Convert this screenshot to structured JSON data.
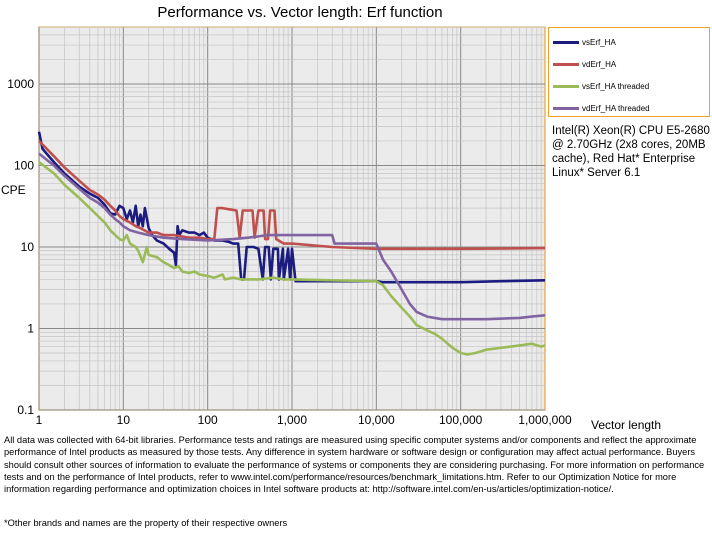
{
  "chart_data": {
    "type": "line",
    "title": "Performance vs. Vector length: Erf function",
    "xlabel": "Vector length",
    "ylabel": "CPE",
    "xscale": "log",
    "yscale": "log",
    "xlim": [
      1,
      1000000
    ],
    "ylim": [
      0.1,
      5000
    ],
    "x_ticks": [
      1,
      10,
      100,
      1000,
      10000,
      100000,
      1000000
    ],
    "x_tick_labels": [
      "1",
      "10",
      "100",
      "1,000",
      "10,000",
      "100,000",
      "1,000,000"
    ],
    "y_ticks": [
      0.1,
      1,
      10,
      100,
      1000
    ],
    "y_tick_labels": [
      "0.1",
      "1",
      "10",
      "100",
      "1000"
    ],
    "grid": true,
    "legend_position": "top-right",
    "series": [
      {
        "name": "vsErf_HA",
        "color": "#1c1c80",
        "points": [
          [
            1,
            260
          ],
          [
            1.1,
            160
          ],
          [
            1.5,
            110
          ],
          [
            2,
            80
          ],
          [
            3,
            55
          ],
          [
            4,
            45
          ],
          [
            5,
            40
          ],
          [
            6,
            33
          ],
          [
            7,
            26
          ],
          [
            8,
            25
          ],
          [
            9,
            32
          ],
          [
            10,
            30
          ],
          [
            11,
            22
          ],
          [
            12,
            28
          ],
          [
            13,
            20
          ],
          [
            14,
            32
          ],
          [
            15,
            18
          ],
          [
            16,
            25
          ],
          [
            17,
            18
          ],
          [
            18,
            30
          ],
          [
            20,
            17
          ],
          [
            22,
            14
          ],
          [
            25,
            12
          ],
          [
            30,
            11
          ],
          [
            35,
            9.5
          ],
          [
            40,
            8.5
          ],
          [
            42,
            6
          ],
          [
            44,
            18
          ],
          [
            46,
            14
          ],
          [
            50,
            16
          ],
          [
            60,
            15
          ],
          [
            70,
            15
          ],
          [
            80,
            14
          ],
          [
            90,
            15
          ],
          [
            100,
            13
          ],
          [
            120,
            12
          ],
          [
            150,
            12
          ],
          [
            180,
            11.5
          ],
          [
            200,
            11
          ],
          [
            230,
            11
          ],
          [
            250,
            4
          ],
          [
            270,
            4
          ],
          [
            290,
            10
          ],
          [
            320,
            10
          ],
          [
            350,
            10
          ],
          [
            400,
            9.5
          ],
          [
            450,
            4
          ],
          [
            480,
            10
          ],
          [
            530,
            10
          ],
          [
            560,
            4
          ],
          [
            600,
            9.5
          ],
          [
            680,
            9.5
          ],
          [
            700,
            4
          ],
          [
            780,
            9.5
          ],
          [
            800,
            4
          ],
          [
            900,
            9.5
          ],
          [
            950,
            4
          ],
          [
            1000,
            9.5
          ],
          [
            1100,
            3.8
          ],
          [
            2000,
            3.8
          ],
          [
            5000,
            3.8
          ],
          [
            10000,
            3.8
          ],
          [
            12000,
            3.7
          ],
          [
            30000,
            3.7
          ],
          [
            100000,
            3.7
          ],
          [
            300000,
            3.8
          ],
          [
            1000000,
            3.9
          ]
        ]
      },
      {
        "name": "vdErf_HA",
        "color": "#c0504d",
        "points": [
          [
            1,
            200
          ],
          [
            1.5,
            130
          ],
          [
            2,
            95
          ],
          [
            3,
            65
          ],
          [
            4,
            50
          ],
          [
            5,
            44
          ],
          [
            6,
            38
          ],
          [
            7,
            32
          ],
          [
            8,
            28
          ],
          [
            9,
            24
          ],
          [
            10,
            22
          ],
          [
            12,
            20
          ],
          [
            14,
            18
          ],
          [
            16,
            17
          ],
          [
            20,
            15
          ],
          [
            25,
            15
          ],
          [
            30,
            14
          ],
          [
            40,
            14
          ],
          [
            60,
            13
          ],
          [
            80,
            13
          ],
          [
            100,
            12.5
          ],
          [
            120,
            12.5
          ],
          [
            130,
            30
          ],
          [
            150,
            30
          ],
          [
            180,
            29
          ],
          [
            220,
            28
          ],
          [
            240,
            13
          ],
          [
            260,
            28
          ],
          [
            300,
            28
          ],
          [
            340,
            28
          ],
          [
            360,
            13
          ],
          [
            400,
            28
          ],
          [
            460,
            28
          ],
          [
            480,
            12.5
          ],
          [
            520,
            12.5
          ],
          [
            550,
            28
          ],
          [
            620,
            28
          ],
          [
            650,
            12.5
          ],
          [
            800,
            11
          ],
          [
            1000,
            11
          ],
          [
            3000,
            10
          ],
          [
            10000,
            9.5
          ],
          [
            100000,
            9.5
          ],
          [
            1000000,
            9.7
          ]
        ]
      },
      {
        "name": "vsErf_HA threaded",
        "color": "#9bbb59",
        "points": [
          [
            1,
            110
          ],
          [
            1.5,
            80
          ],
          [
            2,
            58
          ],
          [
            3,
            40
          ],
          [
            4,
            30
          ],
          [
            5,
            24
          ],
          [
            6,
            20
          ],
          [
            7,
            16
          ],
          [
            8,
            14
          ],
          [
            9,
            12.5
          ],
          [
            10,
            12
          ],
          [
            11,
            14
          ],
          [
            12,
            11
          ],
          [
            14,
            10
          ],
          [
            15,
            9
          ],
          [
            17,
            6.5
          ],
          [
            19,
            10
          ],
          [
            20,
            8
          ],
          [
            25,
            7.5
          ],
          [
            30,
            6.5
          ],
          [
            35,
            6
          ],
          [
            40,
            5.5
          ],
          [
            45,
            5.8
          ],
          [
            50,
            5
          ],
          [
            60,
            4.8
          ],
          [
            70,
            5
          ],
          [
            80,
            4.6
          ],
          [
            90,
            4.5
          ],
          [
            100,
            4.4
          ],
          [
            120,
            4.2
          ],
          [
            150,
            4.6
          ],
          [
            160,
            4
          ],
          [
            200,
            4.2
          ],
          [
            250,
            4
          ],
          [
            300,
            4
          ],
          [
            400,
            4
          ],
          [
            600,
            4.2
          ],
          [
            800,
            4
          ],
          [
            1000,
            4
          ],
          [
            3000,
            3.9
          ],
          [
            10000,
            3.8
          ],
          [
            12000,
            3.4
          ],
          [
            15000,
            2.5
          ],
          [
            20000,
            1.8
          ],
          [
            25000,
            1.4
          ],
          [
            30000,
            1.1
          ],
          [
            40000,
            0.95
          ],
          [
            50000,
            0.85
          ],
          [
            60000,
            0.75
          ],
          [
            70000,
            0.65
          ],
          [
            80000,
            0.58
          ],
          [
            100000,
            0.5
          ],
          [
            120000,
            0.48
          ],
          [
            150000,
            0.5
          ],
          [
            200000,
            0.55
          ],
          [
            300000,
            0.58
          ],
          [
            500000,
            0.62
          ],
          [
            700000,
            0.65
          ],
          [
            900000,
            0.6
          ],
          [
            1000000,
            0.62
          ]
        ]
      },
      {
        "name": "vdErf_HA threaded",
        "color": "#8064a2",
        "points": [
          [
            1,
            140
          ],
          [
            1.5,
            100
          ],
          [
            2,
            75
          ],
          [
            3,
            52
          ],
          [
            4,
            40
          ],
          [
            5,
            35
          ],
          [
            6,
            30
          ],
          [
            7,
            25
          ],
          [
            8,
            22
          ],
          [
            9,
            20
          ],
          [
            10,
            18
          ],
          [
            12,
            16
          ],
          [
            15,
            15
          ],
          [
            20,
            14
          ],
          [
            30,
            13
          ],
          [
            50,
            12.5
          ],
          [
            100,
            12
          ],
          [
            200,
            12.5
          ],
          [
            300,
            13
          ],
          [
            400,
            13.5
          ],
          [
            500,
            14
          ],
          [
            1000,
            14
          ],
          [
            2000,
            14
          ],
          [
            3000,
            14
          ],
          [
            3200,
            11
          ],
          [
            8000,
            11
          ],
          [
            10000,
            11
          ],
          [
            12000,
            7
          ],
          [
            15000,
            5
          ],
          [
            20000,
            3
          ],
          [
            25000,
            2
          ],
          [
            30000,
            1.6
          ],
          [
            40000,
            1.4
          ],
          [
            60000,
            1.3
          ],
          [
            100000,
            1.3
          ],
          [
            200000,
            1.3
          ],
          [
            500000,
            1.35
          ],
          [
            700000,
            1.4
          ],
          [
            1000000,
            1.45
          ]
        ]
      }
    ]
  },
  "annotation": "Intel(R) Xeon(R) CPU E5-2680 @ 2.70GHz (2x8 cores, 20MB cache), Red Hat* Enterprise Linux* Server 6.1",
  "disclaimer": "All data was collected with 64-bit libraries. Performance tests and ratings are measured using specific computer systems and/or components and reflect the approximate performance of Intel products as measured by those tests. Any difference in system hardware or software design or configuration may affect actual performance. Buyers should consult other sources of information to evaluate the performance of systems or components they are considering purchasing. For more information on performance tests and on the performance of Intel products, refer to www.intel.com/performance/resources/benchmark_limitations.htm. Refer to our Optimization Notice for more information regarding performance and optimization choices in Intel software products at: http://software.intel.com/en-us/articles/optimization-notice/.",
  "footnote": "*Other brands and names are the property of their respective owners"
}
